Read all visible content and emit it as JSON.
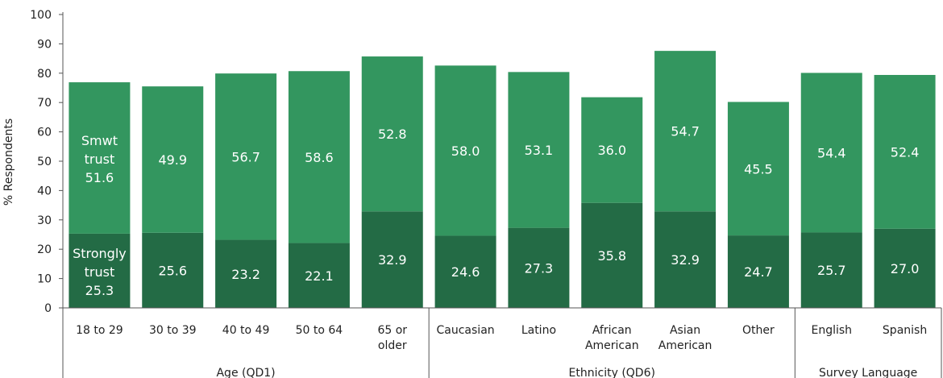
{
  "chart_data": {
    "type": "bar",
    "stacked": true,
    "ylabel": "% Respondents",
    "ylim": [
      0,
      100
    ],
    "yticks": [
      0,
      10,
      20,
      30,
      40,
      50,
      60,
      70,
      80,
      90,
      100
    ],
    "categories": [
      [
        "18 to 29"
      ],
      [
        "30 to 39"
      ],
      [
        "40 to 49"
      ],
      [
        "50 to 64"
      ],
      [
        "65 or",
        "older"
      ],
      [
        "Caucasian"
      ],
      [
        "Latino"
      ],
      [
        "African",
        "American"
      ],
      [
        "Asian",
        "American"
      ],
      [
        "Other"
      ],
      [
        "English"
      ],
      [
        "Spanish"
      ]
    ],
    "groups": [
      {
        "label": "Age (QD1)",
        "start": 0,
        "end": 4
      },
      {
        "label": "Ethnicity (QD6)",
        "start": 5,
        "end": 9
      },
      {
        "label": "Survey Language",
        "start": 10,
        "end": 11
      }
    ],
    "series": [
      {
        "name": "Strongly trust",
        "color": "#236b45",
        "values": [
          25.3,
          25.6,
          23.2,
          22.1,
          32.9,
          24.6,
          27.3,
          35.8,
          32.9,
          24.7,
          25.7,
          27.0
        ]
      },
      {
        "name": "Smwt trust",
        "color": "#33965f",
        "values": [
          51.6,
          49.9,
          56.7,
          58.6,
          52.8,
          58.0,
          53.1,
          36.0,
          54.7,
          45.5,
          54.4,
          52.4
        ]
      }
    ],
    "inline_series_labels": [
      [
        "Strongly",
        "trust"
      ],
      [
        "Smwt",
        "trust"
      ]
    ],
    "grid": false,
    "legend": "none"
  }
}
